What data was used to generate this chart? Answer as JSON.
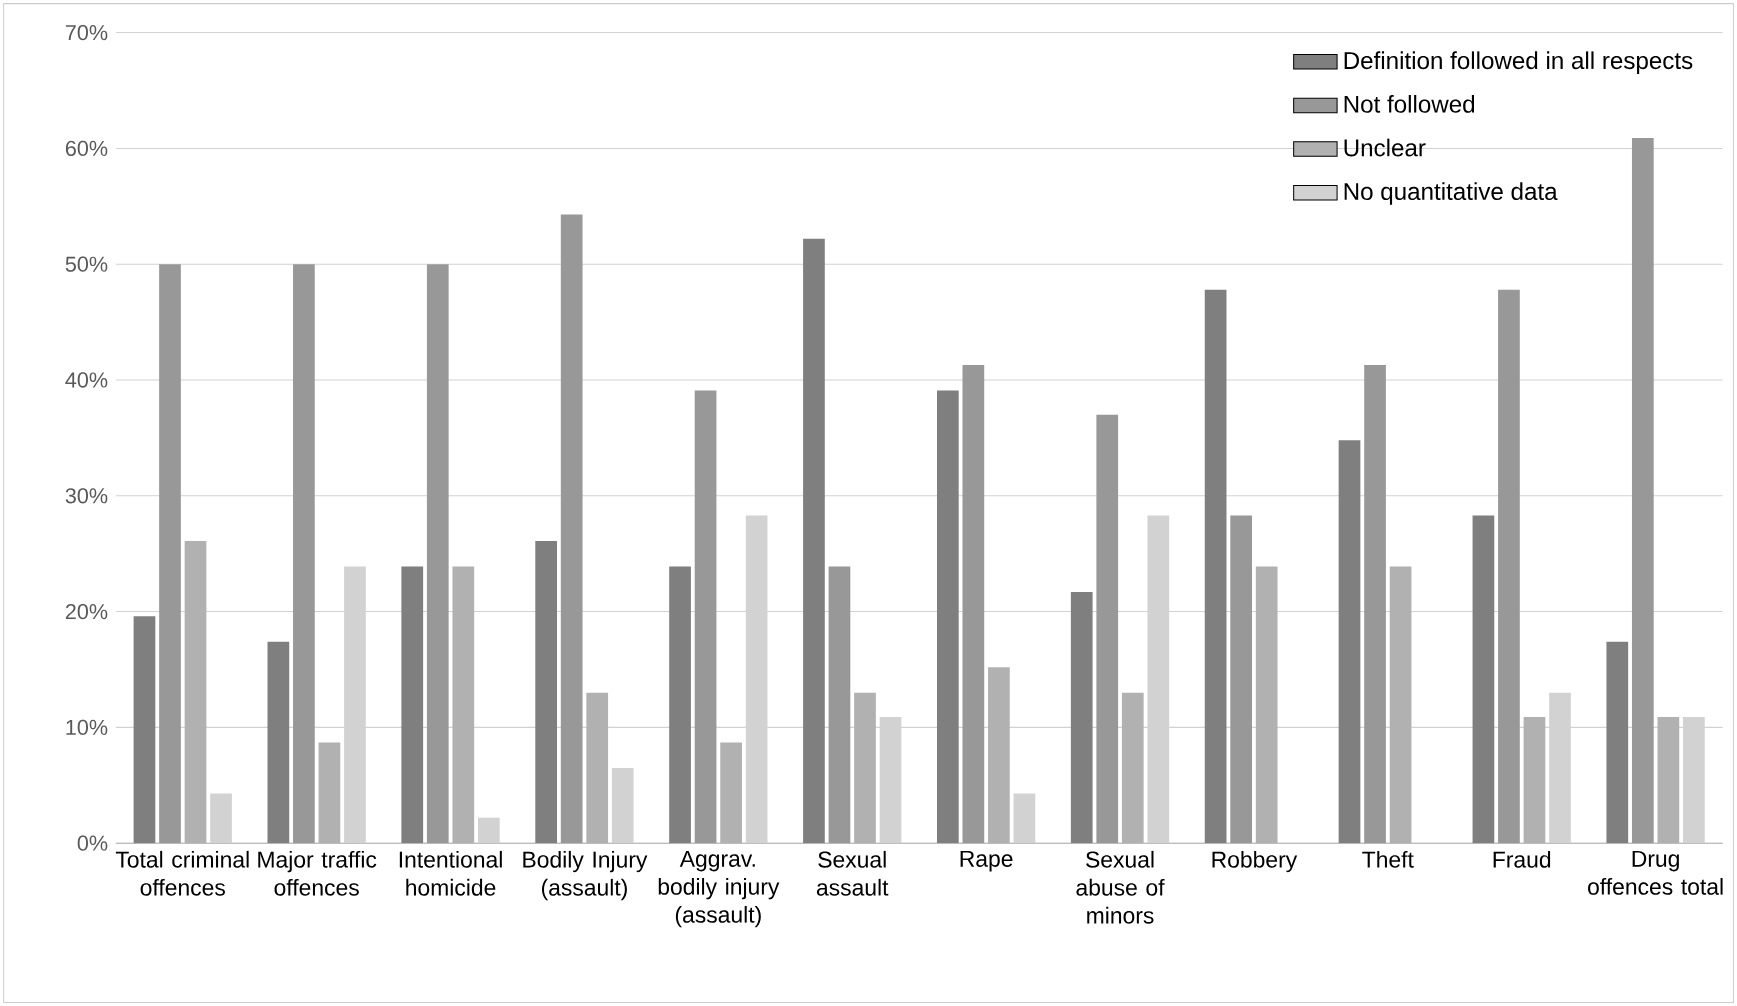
{
  "chart_data": {
    "type": "bar",
    "categories": [
      "Total criminal offences",
      "Major traffic offences",
      "Intentional homicide",
      "Bodily Injury (assault)",
      "Aggrav. bodily injury (assault)",
      "Sexual assault",
      "Rape",
      "Sexual abuse of minors",
      "Robbery",
      "Theft",
      "Fraud",
      "Drug offences total"
    ],
    "series": [
      {
        "name": "Definition followed in all respects",
        "color": "#7f7f7f",
        "values": [
          19.6,
          17.4,
          23.9,
          26.1,
          23.9,
          52.2,
          39.1,
          21.7,
          47.8,
          34.8,
          28.3,
          17.4
        ]
      },
      {
        "name": "Not followed",
        "color": "#989898",
        "values": [
          50,
          50,
          50,
          54.3,
          39.1,
          23.9,
          41.3,
          37.0,
          28.3,
          41.3,
          47.8,
          60.9
        ]
      },
      {
        "name": "Unclear",
        "color": "#b1b1b1",
        "values": [
          26.1,
          8.7,
          23.9,
          13.0,
          8.7,
          13.0,
          15.2,
          13.0,
          23.9,
          23.9,
          10.9,
          10.9
        ]
      },
      {
        "name": "No quantitative data",
        "color": "#d2d2d2",
        "values": [
          4.3,
          23.9,
          2.2,
          6.5,
          28.3,
          10.9,
          4.3,
          28.3,
          0,
          0,
          13.0,
          10.9
        ]
      }
    ],
    "ylim": [
      0,
      70
    ],
    "yticks": [
      {
        "value": 0,
        "label": "0%"
      },
      {
        "value": 10,
        "label": "10%"
      },
      {
        "value": 20,
        "label": "20%"
      },
      {
        "value": 30,
        "label": "30%"
      },
      {
        "value": 40,
        "label": "40%"
      },
      {
        "value": 50,
        "label": "50%"
      },
      {
        "value": 60,
        "label": "60%"
      },
      {
        "value": 70,
        "label": "70%"
      }
    ],
    "grid": "y",
    "legend": "top right"
  }
}
